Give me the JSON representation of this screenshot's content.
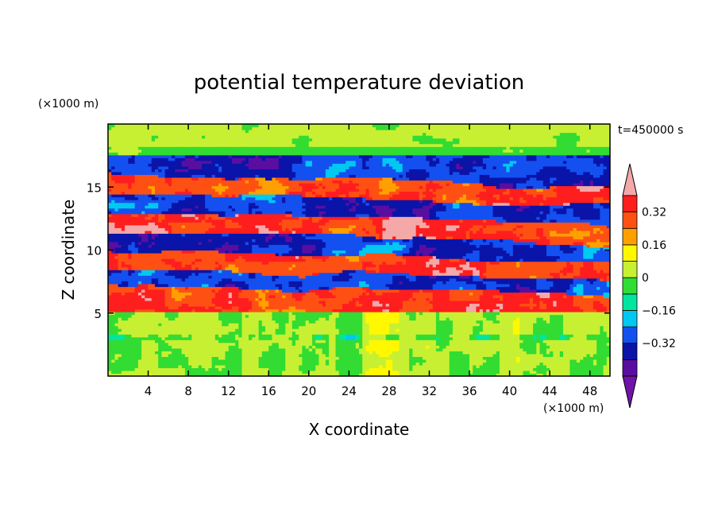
{
  "chart_data": {
    "type": "heatmap",
    "title": "potential temperature deviation",
    "xlabel": "X coordinate",
    "ylabel": "Z coordinate",
    "x_unit": "(×1000 m)",
    "y_unit": "(×1000 m)",
    "time_label": "t=450000 s",
    "xlim": [
      0,
      50
    ],
    "ylim": [
      0,
      20
    ],
    "x_ticks": [
      4,
      8,
      12,
      16,
      20,
      24,
      28,
      32,
      36,
      40,
      44,
      48
    ],
    "y_ticks": [
      5,
      10,
      15
    ],
    "colorbar": {
      "levels": [
        -0.48,
        -0.4,
        -0.32,
        -0.24,
        -0.16,
        -0.08,
        0,
        0.08,
        0.16,
        0.24,
        0.32,
        0.4
      ],
      "tick_values": [
        0.32,
        0.16,
        0,
        -0.16,
        -0.32
      ],
      "tick_labels": [
        "0.32",
        "0.16",
        "0",
        "−0.16",
        "−0.32"
      ],
      "colors": [
        "#7014a8",
        "#5a0ea0",
        "#0a14a8",
        "#1450f0",
        "#00c8f0",
        "#00e6a0",
        "#32dc32",
        "#c8f032",
        "#fff800",
        "#ffa000",
        "#ff5014",
        "#ff1e1e",
        "#f4a8a8"
      ],
      "extend": "both"
    },
    "fields": {
      "upper_mean_value": 0.02,
      "band_values": [
        {
          "z_center": 16.2,
          "value": -0.44
        },
        {
          "z_center": 14.6,
          "value": 0.42
        },
        {
          "z_center": 13.2,
          "value": -0.42
        },
        {
          "z_center": 11.6,
          "value": 0.44
        },
        {
          "z_center": 10.2,
          "value": -0.44
        },
        {
          "z_center": 8.8,
          "value": 0.42
        },
        {
          "z_center": 7.4,
          "value": -0.42
        },
        {
          "z_center": 6.3,
          "value": 0.42
        }
      ],
      "lower_layer": {
        "z_bottom": 0,
        "z_top": 5.0,
        "mean_value": 0.0
      }
    }
  }
}
